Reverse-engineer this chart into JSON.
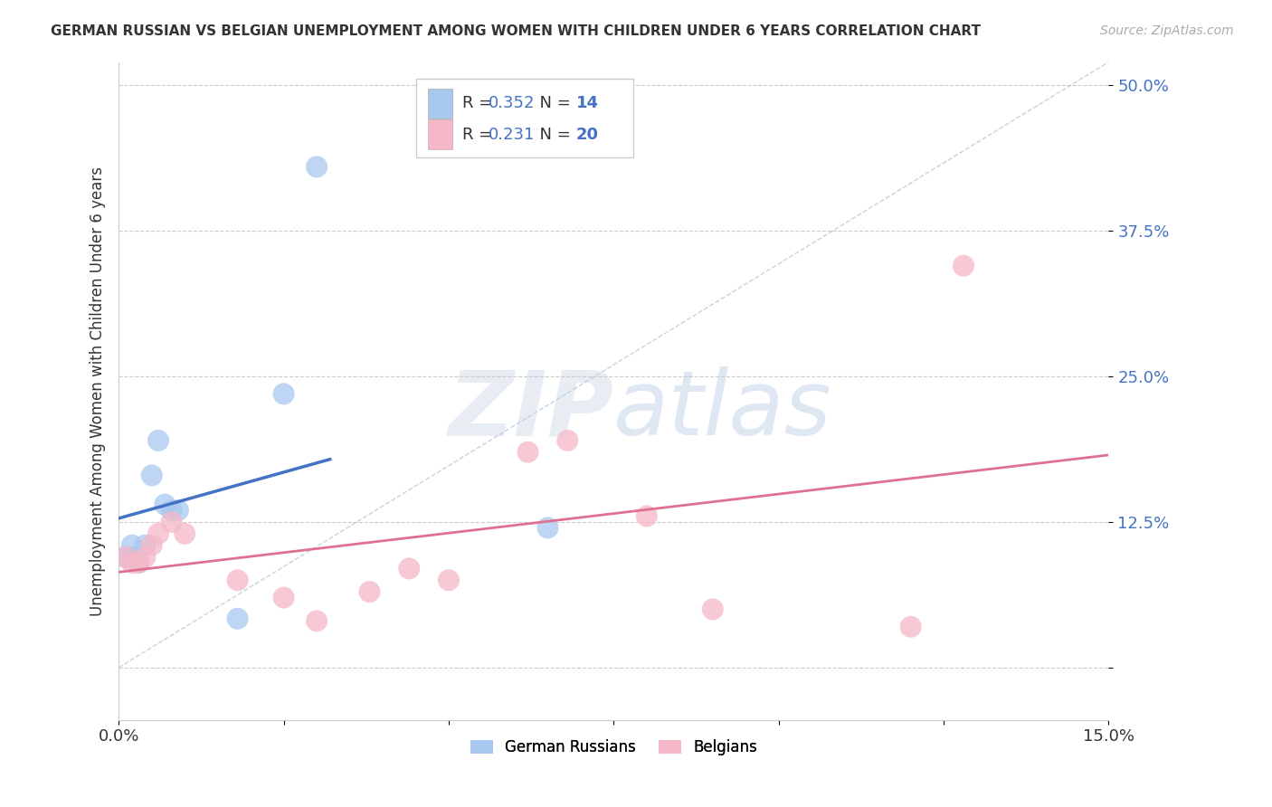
{
  "title": "GERMAN RUSSIAN VS BELGIAN UNEMPLOYMENT AMONG WOMEN WITH CHILDREN UNDER 6 YEARS CORRELATION CHART",
  "source": "Source: ZipAtlas.com",
  "ylabel": "Unemployment Among Women with Children Under 6 years",
  "xlim": [
    0.0,
    0.15
  ],
  "ylim": [
    -0.045,
    0.52
  ],
  "german_russian_x": [
    0.001,
    0.002,
    0.002,
    0.003,
    0.004,
    0.005,
    0.006,
    0.007,
    0.008,
    0.009,
    0.018,
    0.025,
    0.03,
    0.065
  ],
  "german_russian_y": [
    0.095,
    0.095,
    0.105,
    0.09,
    0.105,
    0.165,
    0.195,
    0.14,
    0.135,
    0.135,
    0.042,
    0.235,
    0.43,
    0.12
  ],
  "belgian_x": [
    0.001,
    0.002,
    0.003,
    0.004,
    0.005,
    0.006,
    0.008,
    0.01,
    0.018,
    0.025,
    0.03,
    0.038,
    0.044,
    0.05,
    0.062,
    0.068,
    0.08,
    0.09,
    0.12,
    0.128
  ],
  "belgian_y": [
    0.095,
    0.09,
    0.09,
    0.095,
    0.105,
    0.115,
    0.125,
    0.115,
    0.075,
    0.06,
    0.04,
    0.065,
    0.085,
    0.075,
    0.185,
    0.195,
    0.13,
    0.05,
    0.035,
    0.345
  ],
  "r_german": 0.352,
  "n_german": 14,
  "r_belgian": 0.231,
  "n_belgian": 20,
  "color_german": "#a8c8f0",
  "color_belgian": "#f5b8c8",
  "line_color_german": "#4472c4",
  "line_color_belgian": "#e07090",
  "diagonal_color": "#b8c8d8",
  "watermark_zip": "ZIP",
  "watermark_atlas": "atlas"
}
